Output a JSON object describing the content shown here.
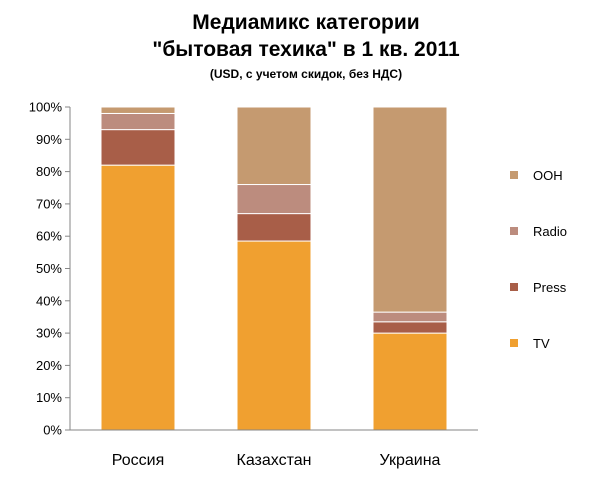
{
  "chart_data": {
    "type": "bar",
    "stacked": true,
    "title_line1": "Медиамикс категории",
    "title_line2": "\"бытовая техика\" в 1 кв. 2011",
    "subtitle": "(USD, с учетом скидок,  без НДС)",
    "xlabel": "",
    "ylabel": "",
    "categories": [
      "Россия",
      "Казахстан",
      "Украина"
    ],
    "ylim": [
      0,
      100
    ],
    "y_ticks": [
      "0%",
      "10%",
      "20%",
      "30%",
      "40%",
      "50%",
      "60%",
      "70%",
      "80%",
      "90%",
      "100%"
    ],
    "grid": false,
    "legend_position": "right",
    "series": [
      {
        "name": "TV",
        "color": "#F0A030",
        "values": [
          82,
          58.5,
          30
        ]
      },
      {
        "name": "Press",
        "color": "#A85E48",
        "values": [
          11,
          8.5,
          3.5
        ]
      },
      {
        "name": "Radio",
        "color": "#BC8C7E",
        "values": [
          5,
          9,
          3
        ]
      },
      {
        "name": "OOH",
        "color": "#C59A70",
        "values": [
          2,
          24,
          63.5
        ]
      }
    ]
  }
}
